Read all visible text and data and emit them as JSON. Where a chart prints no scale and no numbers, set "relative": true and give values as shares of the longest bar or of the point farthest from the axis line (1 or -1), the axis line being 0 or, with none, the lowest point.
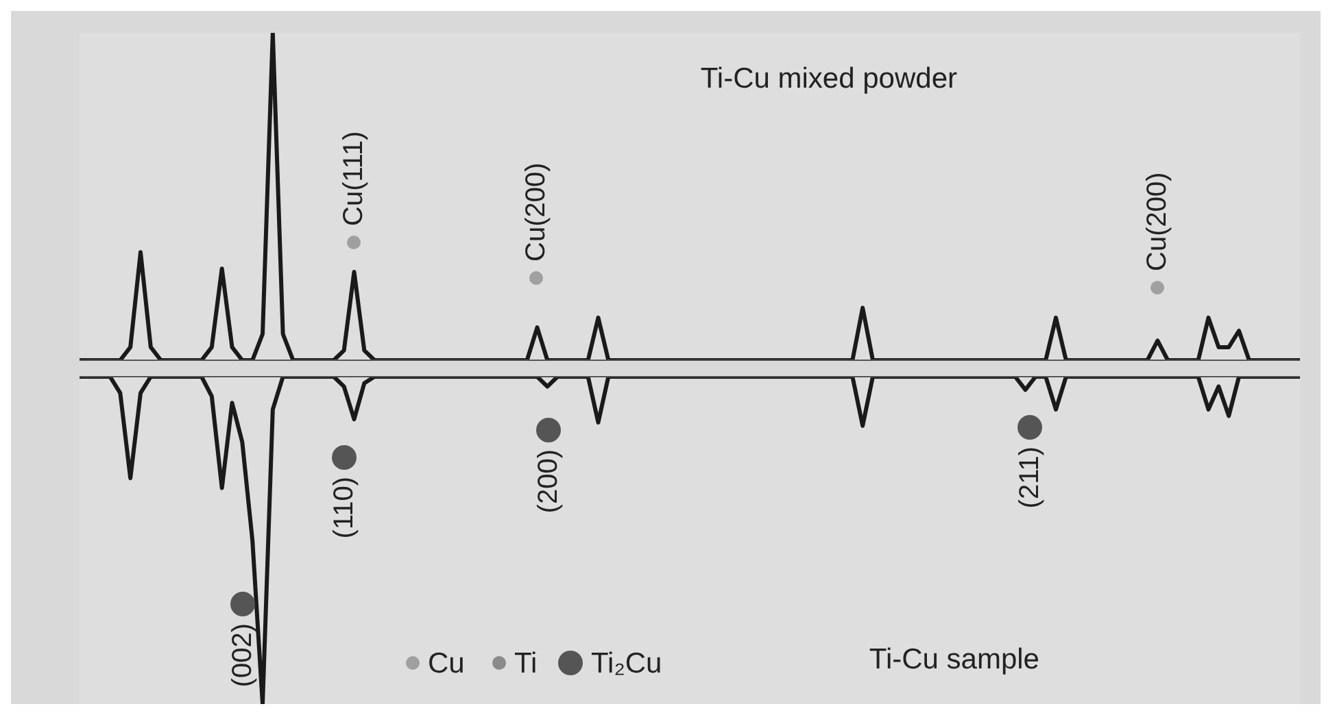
{
  "chart_data": [
    {
      "type": "line",
      "title": "Ti-Cu mixed powder",
      "relative": true,
      "grid": false,
      "marker": "none",
      "categories": [
        null,
        null,
        null,
        null,
        null,
        null,
        null,
        null,
        null,
        null,
        null,
        null,
        null,
        null,
        null,
        null,
        null,
        null,
        null,
        null,
        null,
        null,
        null,
        null,
        null,
        null,
        null,
        null,
        null,
        null,
        null,
        null,
        null,
        null,
        null,
        null,
        null,
        null,
        null,
        null,
        null,
        null,
        null,
        null,
        null,
        null,
        null,
        null,
        null,
        null,
        null,
        null,
        null,
        null,
        null,
        null,
        null,
        null,
        null,
        null,
        null,
        null,
        null,
        null,
        null,
        null,
        null,
        null,
        null,
        null,
        null,
        null,
        null,
        null,
        null,
        null,
        null,
        null,
        null,
        null,
        null,
        null,
        null,
        null,
        null,
        null,
        null,
        null,
        null,
        null,
        null,
        null,
        null,
        null,
        null,
        null,
        null,
        null,
        null,
        null,
        null,
        null,
        null,
        null,
        null,
        null,
        null,
        null,
        null,
        null,
        null,
        null,
        null,
        null,
        null,
        null,
        null,
        null,
        null,
        null,
        null
      ],
      "series": [
        {
          "color": "#1a1a1a",
          "values": [
            0,
            0,
            0,
            0,
            0,
            0.04,
            0.33,
            0.04,
            0,
            0,
            0,
            0,
            0,
            0.04,
            0.28,
            0.04,
            0,
            0,
            0.08,
            1,
            0.08,
            0,
            0,
            0,
            0,
            0,
            0.03,
            0.27,
            0.03,
            0,
            0,
            0,
            0,
            0,
            0,
            0,
            0,
            0,
            0,
            0,
            0,
            0,
            0,
            0,
            0,
            0.1,
            0,
            0,
            0,
            0,
            0,
            0.13,
            0,
            0,
            0,
            0,
            0,
            0,
            0,
            0,
            0,
            0,
            0,
            0,
            0,
            0,
            0,
            0,
            0,
            0,
            0,
            0,
            0,
            0,
            0,
            0,
            0,
            0.16,
            0,
            0,
            0,
            0,
            0,
            0,
            0,
            0,
            0,
            0,
            0,
            0,
            0,
            0,
            0,
            0,
            0,
            0,
            0.13,
            0,
            0,
            0,
            0,
            0,
            0,
            0,
            0,
            0,
            0.06,
            0,
            0,
            0,
            0,
            0.13,
            0.04,
            0.04,
            0.09,
            0,
            0,
            0,
            0,
            0,
            0
          ]
        }
      ],
      "annotations": [
        "Cu(111)",
        "Cu(200)",
        "Cu(200)"
      ]
    },
    {
      "type": "line",
      "title": "Ti-Cu sample",
      "relative": true,
      "grid": false,
      "marker": "none",
      "categories": [
        null,
        null,
        null,
        null,
        null,
        null,
        null,
        null,
        null,
        null,
        null,
        null,
        null,
        null,
        null,
        null,
        null,
        null,
        null,
        null,
        null,
        null,
        null,
        null,
        null,
        null,
        null,
        null,
        null,
        null,
        null,
        null,
        null,
        null,
        null,
        null,
        null,
        null,
        null,
        null,
        null,
        null,
        null,
        null,
        null,
        null,
        null,
        null,
        null,
        null,
        null,
        null,
        null,
        null,
        null,
        null,
        null,
        null,
        null,
        null,
        null,
        null,
        null,
        null,
        null,
        null,
        null,
        null,
        null,
        null,
        null,
        null,
        null,
        null,
        null,
        null,
        null,
        null,
        null,
        null,
        null,
        null,
        null,
        null,
        null,
        null,
        null,
        null,
        null,
        null,
        null,
        null,
        null,
        null,
        null,
        null,
        null,
        null,
        null,
        null,
        null,
        null,
        null,
        null,
        null,
        null,
        null,
        null,
        null,
        null,
        null,
        null,
        null,
        null,
        null,
        null,
        null,
        null,
        null,
        null,
        null
      ],
      "series": [
        {
          "color": "#1a1a1a",
          "values": [
            0,
            0,
            0,
            0,
            -0.05,
            -0.31,
            -0.05,
            0,
            0,
            0,
            0,
            0,
            0,
            -0.06,
            -0.34,
            -0.08,
            -0.2,
            -0.5,
            -1,
            -0.1,
            0,
            0,
            0,
            0,
            0,
            0,
            -0.03,
            -0.13,
            -0.02,
            0,
            0,
            0,
            0,
            0,
            0,
            0,
            0,
            0,
            0,
            0,
            0,
            0,
            0,
            0,
            0,
            0,
            -0.03,
            0,
            0,
            0,
            0,
            -0.14,
            0,
            0,
            0,
            0,
            0,
            0,
            0,
            0,
            0,
            0,
            0,
            0,
            0,
            0,
            0,
            0,
            0,
            0,
            0,
            0,
            0,
            0,
            0,
            0,
            0,
            -0.15,
            0,
            0,
            0,
            0,
            0,
            0,
            0,
            0,
            0,
            0,
            0,
            0,
            0,
            0,
            0,
            -0.04,
            0,
            0,
            -0.1,
            0,
            0,
            0,
            0,
            0,
            0,
            0,
            0,
            0,
            0,
            0,
            0,
            0,
            0,
            -0.1,
            -0.03,
            -0.12,
            0,
            0,
            0,
            0,
            0,
            0,
            0
          ]
        }
      ],
      "annotations": [
        "(002)",
        "(110)",
        "(200)",
        "(211)",
        "Cu",
        "Ti",
        "Ti₂Cu"
      ]
    }
  ]
}
